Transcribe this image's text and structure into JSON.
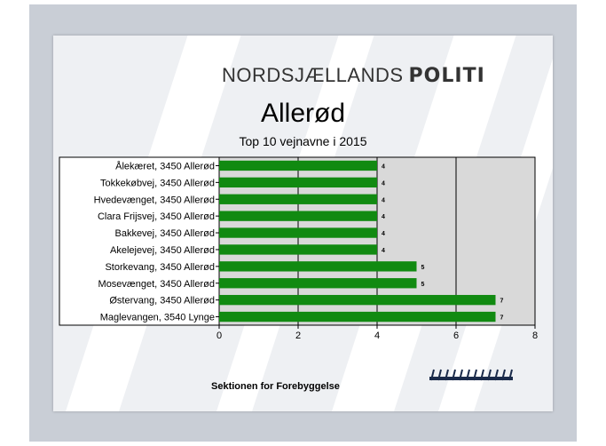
{
  "brand": {
    "light": "NORDSJÆLLANDS",
    "bold": "POLITI"
  },
  "header": {
    "title": "Allerød",
    "subtitle": "Top 10 vejnavne  i 2015"
  },
  "footer": {
    "department": "Sektionen for Forebyggelse"
  },
  "colors": {
    "bar": "#118a11",
    "plot_bg": "#d9d9d9",
    "grid": "#000000"
  },
  "chart_data": {
    "type": "bar",
    "orientation": "horizontal",
    "title": "Allerød",
    "subtitle": "Top 10 vejnavne  i 2015",
    "categories": [
      "Ålekæret, 3450 Allerød",
      "Tokkekøbvej, 3450 Allerød",
      "Hvedevænget, 3450 Allerød",
      "Clara Frijsvej, 3450 Allerød",
      "Bakkevej, 3450 Allerød",
      "Akelejevej, 3450 Allerød",
      "Storkevang, 3450 Allerød",
      "Mosevænget, 3450 Allerød",
      "Østervang, 3450 Allerød",
      "Maglevangen, 3540 Lynge"
    ],
    "values": [
      4,
      4,
      4,
      4,
      4,
      4,
      5,
      5,
      7,
      7
    ],
    "xlim": [
      0,
      8
    ],
    "xticks": [
      0,
      2,
      4,
      6,
      8
    ],
    "gridlines": [
      2,
      4,
      6
    ],
    "data_labels": true,
    "xlabel": "",
    "ylabel": ""
  }
}
